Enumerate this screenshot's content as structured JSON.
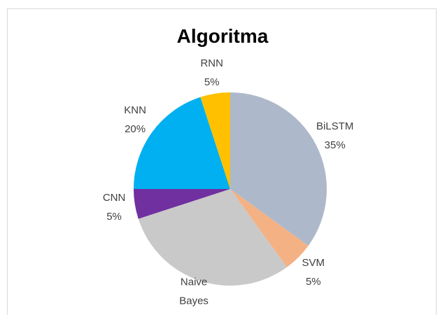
{
  "chart_data": {
    "type": "pie",
    "title": "Algoritma",
    "categories": [
      "BiLSTM",
      "SVM",
      "Naive Bayes",
      "CNN",
      "KNN",
      "RNN"
    ],
    "values": [
      35,
      5,
      30,
      5,
      20,
      5
    ],
    "value_labels": [
      "35%",
      "5%",
      "30%",
      "5%",
      "20%",
      "5%"
    ],
    "colors": [
      "#adb9ca",
      "#f4b183",
      "#c9c9c9",
      "#7030a0",
      "#00b0f0",
      "#ffc000"
    ]
  }
}
